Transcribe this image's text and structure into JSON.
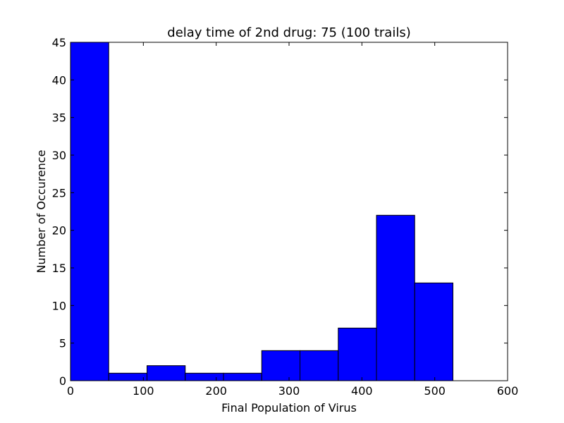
{
  "chart_data": {
    "type": "bar",
    "title": "delay time of 2nd drug: 75 (100 trails)",
    "xlabel": "Final Population of Virus",
    "ylabel": "Number of Occurence",
    "xlim": [
      0,
      600
    ],
    "ylim": [
      0,
      45
    ],
    "xticks": [
      "0",
      "100",
      "200",
      "300",
      "400",
      "500",
      "600"
    ],
    "yticks": [
      "0",
      "5",
      "10",
      "15",
      "20",
      "25",
      "30",
      "35",
      "40",
      "45"
    ],
    "bins": [
      {
        "x0": 0,
        "x1": 52.5,
        "value": 45
      },
      {
        "x0": 52.5,
        "x1": 105,
        "value": 1
      },
      {
        "x0": 105,
        "x1": 157.5,
        "value": 2
      },
      {
        "x0": 157.5,
        "x1": 210,
        "value": 1
      },
      {
        "x0": 210,
        "x1": 262.5,
        "value": 1
      },
      {
        "x0": 262.5,
        "x1": 315,
        "value": 4
      },
      {
        "x0": 315,
        "x1": 367.5,
        "value": 4
      },
      {
        "x0": 367.5,
        "x1": 420,
        "value": 7
      },
      {
        "x0": 420,
        "x1": 472.5,
        "value": 22
      },
      {
        "x0": 472.5,
        "x1": 525,
        "value": 13
      }
    ],
    "bar_color": "#0000ff",
    "grid": false
  }
}
